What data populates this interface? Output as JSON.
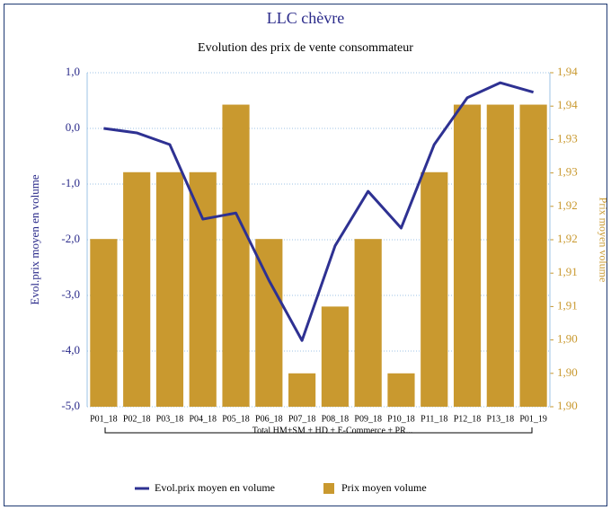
{
  "chart_data": {
    "type": "bar_line",
    "title": "LLC chèvre",
    "subtitle": "Evolution des prix de vente consommateur",
    "y_label": "Evol.prix moyen en volume",
    "y2_label": "Prix moyen volume",
    "group_label": "Total HM+SM + HD + E-Commerce + PR...",
    "categories": [
      "P01_18",
      "P02_18",
      "P03_18",
      "P04_18",
      "P05_18",
      "P06_18",
      "P07_18",
      "P08_18",
      "P09_18",
      "P10_18",
      "P11_18",
      "P12_18",
      "P13_18",
      "P01_19"
    ],
    "series": [
      {
        "name": "Evol.prix moyen en volume",
        "type": "line",
        "color": "#2e3192",
        "axis": "y",
        "values": [
          0.0,
          -0.08,
          -0.29,
          -1.63,
          -1.52,
          -2.73,
          -3.81,
          -2.11,
          -1.13,
          -1.79,
          -0.29,
          0.55,
          0.82,
          0.65
        ]
      },
      {
        "name": "Prix moyen volume",
        "type": "bar",
        "color": "#c9992f",
        "axis": "y2",
        "values": [
          1.9176,
          1.9266,
          1.9266,
          1.9266,
          1.9357,
          1.9176,
          1.8995,
          1.9085,
          1.9176,
          1.8995,
          1.9266,
          1.9357,
          1.9357,
          1.9357
        ]
      }
    ],
    "ylim": [
      -5,
      1
    ],
    "yticks": [
      {
        "value": -5,
        "label": "-5,0"
      },
      {
        "value": -4,
        "label": "-4,0"
      },
      {
        "value": -3,
        "label": "-3,0"
      },
      {
        "value": -2,
        "label": "-2,0"
      },
      {
        "value": -1,
        "label": "-1,0"
      },
      {
        "value": 0,
        "label": "0,0"
      },
      {
        "value": 1,
        "label": "1,0"
      }
    ],
    "y2lim": [
      1.895,
      1.94
    ],
    "y2ticks": [
      {
        "value": 1.895,
        "label": "1,90"
      },
      {
        "value": 1.8995,
        "label": "1,90"
      },
      {
        "value": 1.904,
        "label": "1,90"
      },
      {
        "value": 1.9085,
        "label": "1,91"
      },
      {
        "value": 1.913,
        "label": "1,91"
      },
      {
        "value": 1.9175,
        "label": "1,92"
      },
      {
        "value": 1.922,
        "label": "1,92"
      },
      {
        "value": 1.9265,
        "label": "1,93"
      },
      {
        "value": 1.931,
        "label": "1,93"
      },
      {
        "value": 1.9355,
        "label": "1,94"
      },
      {
        "value": 1.94,
        "label": "1,94"
      }
    ],
    "grid": true,
    "legend": "bottom"
  }
}
